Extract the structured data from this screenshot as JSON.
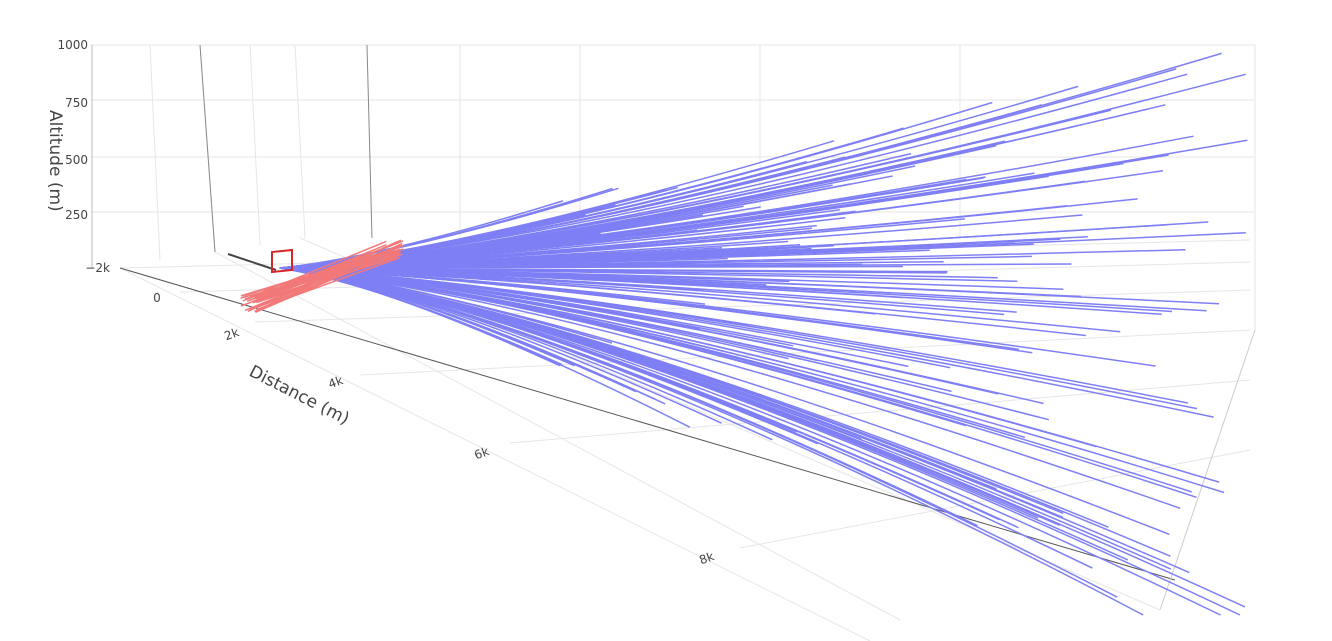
{
  "chart_data": {
    "type": "line3d",
    "title": "",
    "axes": {
      "z": {
        "title": "Altitude (m)",
        "ticks": [
          "1000",
          "750",
          "500",
          "250",
          "−2k"
        ]
      },
      "x": {
        "title": "Distance (m)",
        "ticks": [
          "0",
          "2k",
          "4k",
          "6k",
          "8k"
        ]
      }
    },
    "grid": true,
    "colors": {
      "trajectory": "#7f7ff5",
      "secondary": "#f27979",
      "target": "#d62728",
      "origin_line": "#444444",
      "grid": "#e6e6e6"
    },
    "series": [
      {
        "color": "#7f7ff5",
        "count": 170,
        "description_values": {
          "distance_range": [
            0,
            9500
          ],
          "altitude_range": [
            0,
            1000
          ]
        }
      },
      {
        "color": "#f27979",
        "count": 30
      }
    ]
  }
}
